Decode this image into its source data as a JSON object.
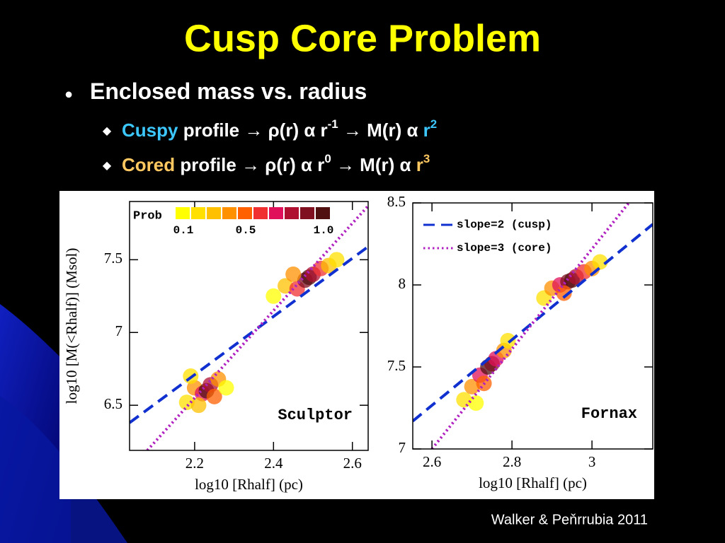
{
  "title": "Cusp Core Problem",
  "bullets": [
    {
      "segments": [
        {
          "text": "Enclosed mass vs. radius"
        }
      ],
      "sub": [
        {
          "segments": [
            {
              "text": "Cuspy",
              "color": "#3cc8ff"
            },
            {
              "text": " profile → ρ(r) α r"
            },
            {
              "text": "-1",
              "sup": true
            },
            {
              "text": " → M(r) α "
            },
            {
              "text": "r",
              "color": "#3cc8ff"
            },
            {
              "text": "2",
              "sup": true,
              "color": "#3cc8ff"
            }
          ]
        },
        {
          "segments": [
            {
              "text": "Cored",
              "color": "#ffc860"
            },
            {
              "text": " profile → ρ(r) α r"
            },
            {
              "text": "0",
              "sup": true
            },
            {
              "text": "  → M(r) α "
            },
            {
              "text": "r",
              "color": "#ffc860"
            },
            {
              "text": "3",
              "sup": true,
              "color": "#ffc860"
            }
          ]
        }
      ]
    }
  ],
  "citation": "Walker & Peňrrubia 2011",
  "chart_data": [
    {
      "type": "scatter",
      "annotation": "Sculptor",
      "x_label": "log10 [Rhalf] (pc)",
      "y_label": "log10 [M(<Rhalf)] (Msol)",
      "xlim": [
        2.035,
        2.64
      ],
      "ylim": [
        6.19,
        7.9
      ],
      "xticks": [
        2.2,
        2.4,
        2.6
      ],
      "yticks": [
        6.5,
        7,
        7.5
      ],
      "colorbar": {
        "title": "Prob",
        "colors": [
          "#ffff00",
          "#ffe000",
          "#ffc000",
          "#ff9000",
          "#ff6000",
          "#f03030",
          "#e0105a",
          "#b01030",
          "#801020",
          "#501010"
        ],
        "ticks": [
          0.1,
          0.5,
          {
            "value": 1,
            "label": "1.0"
          }
        ]
      },
      "points": {
        "x": [
          2.18,
          2.2,
          2.22,
          2.23,
          2.24,
          2.26,
          2.21,
          2.25,
          2.19,
          2.28,
          2.4,
          2.43,
          2.46,
          2.48,
          2.49,
          2.5,
          2.52,
          2.54,
          2.45,
          2.56
        ],
        "y": [
          6.52,
          6.62,
          6.58,
          6.6,
          6.64,
          6.68,
          6.5,
          6.56,
          6.7,
          6.62,
          7.25,
          7.32,
          7.3,
          7.36,
          7.38,
          7.4,
          7.44,
          7.46,
          7.4,
          7.5
        ],
        "prob": [
          0.2,
          0.4,
          0.7,
          1,
          0.8,
          0.4,
          0.3,
          0.5,
          0.2,
          0.1,
          0.1,
          0.3,
          0.6,
          0.9,
          1,
          0.8,
          0.6,
          0.3,
          0.4,
          0.2
        ]
      },
      "series": [
        {
          "color": "#1030d0",
          "dash": "dashed",
          "x": [
            2.035,
            2.64
          ],
          "values": [
            6.38,
            7.59
          ]
        },
        {
          "color": "#b020c0",
          "dash": "dotted",
          "x": [
            2.08,
            2.65
          ],
          "values": [
            6.19,
            7.9
          ]
        }
      ]
    },
    {
      "type": "scatter",
      "annotation": "Fornax",
      "x_label": "log10 [Rhalf] (pc)",
      "xlim": [
        2.552,
        3.152
      ],
      "ylim": [
        7,
        8.5
      ],
      "xticks": [
        2.6,
        2.8,
        3
      ],
      "yticks": [
        7,
        7.5,
        8,
        8.5
      ],
      "legend": "upper-left",
      "points": {
        "x": [
          2.68,
          2.7,
          2.72,
          2.74,
          2.75,
          2.76,
          2.78,
          2.71,
          2.73,
          2.79,
          2.88,
          2.9,
          2.92,
          2.94,
          2.95,
          2.96,
          2.98,
          3,
          3.02,
          2.93
        ],
        "y": [
          7.3,
          7.38,
          7.45,
          7.5,
          7.52,
          7.55,
          7.6,
          7.28,
          7.4,
          7.66,
          7.92,
          7.98,
          8,
          8.02,
          8.03,
          8.05,
          8.08,
          8.1,
          8.14,
          7.95
        ],
        "prob": [
          0.2,
          0.4,
          0.7,
          1,
          0.9,
          0.7,
          0.4,
          0.1,
          0.5,
          0.2,
          0.2,
          0.4,
          0.7,
          0.9,
          1,
          0.8,
          0.6,
          0.4,
          0.2,
          0.5
        ]
      },
      "series": [
        {
          "name": "slope=2 (cusp)",
          "color": "#1030d0",
          "dash": "dashed",
          "x": [
            2.552,
            3.152
          ],
          "values": [
            7.17,
            8.37
          ]
        },
        {
          "name": "slope=3 (core)",
          "color": "#b020c0",
          "dash": "dotted",
          "x": [
            2.6,
            3.092
          ],
          "values": [
            7,
            8.5
          ]
        }
      ]
    }
  ]
}
